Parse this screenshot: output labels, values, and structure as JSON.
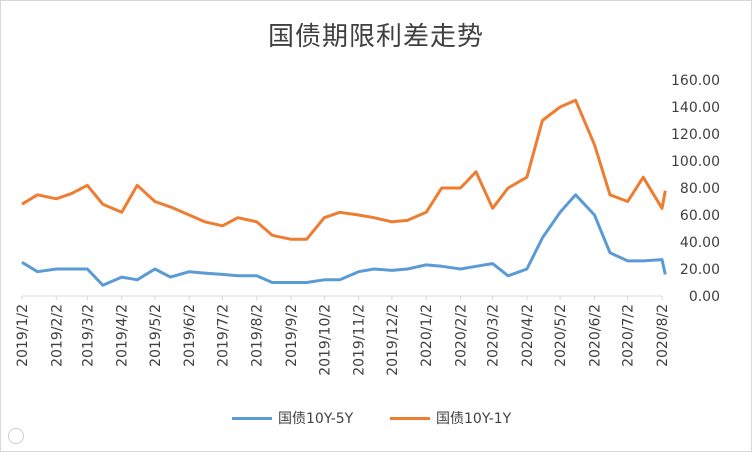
{
  "chart_data": {
    "type": "line",
    "title": "国债期限利差走势",
    "xlabel": "",
    "ylabel": "",
    "ylim": [
      0,
      160
    ],
    "y_ticks": [
      "0.00",
      "20.00",
      "40.00",
      "60.00",
      "80.00",
      "100.00",
      "120.00",
      "140.00",
      "160.00"
    ],
    "x_ticks": [
      "2019/1/2",
      "2019/2/2",
      "2019/3/2",
      "2019/4/2",
      "2019/5/2",
      "2019/6/2",
      "2019/7/2",
      "2019/8/2",
      "2019/9/2",
      "2019/10/2",
      "2019/11/2",
      "2019/12/2",
      "2020/1/2",
      "2020/2/2",
      "2020/3/2",
      "2020/4/2",
      "2020/5/2",
      "2020/6/2",
      "2020/7/2",
      "2020/8/2"
    ],
    "x": [
      "2019/1/2",
      "2019/1/16",
      "2019/2/2",
      "2019/2/16",
      "2019/3/2",
      "2019/3/16",
      "2019/4/2",
      "2019/4/16",
      "2019/5/2",
      "2019/5/16",
      "2019/6/2",
      "2019/6/16",
      "2019/7/2",
      "2019/7/16",
      "2019/8/2",
      "2019/8/16",
      "2019/9/2",
      "2019/9/16",
      "2019/10/2",
      "2019/10/16",
      "2019/11/2",
      "2019/11/16",
      "2019/12/2",
      "2019/12/16",
      "2020/1/2",
      "2020/1/16",
      "2020/2/2",
      "2020/2/16",
      "2020/3/2",
      "2020/3/16",
      "2020/4/2",
      "2020/4/16",
      "2020/5/2",
      "2020/5/16",
      "2020/6/2",
      "2020/6/16",
      "2020/7/2",
      "2020/7/16",
      "2020/8/2",
      "2020/8/5"
    ],
    "grid": false,
    "legend_position": "bottom",
    "series": [
      {
        "name": "国债10Y-5Y",
        "color": "#5b9bd5",
        "values": [
          25,
          18,
          20,
          20,
          20,
          8,
          14,
          12,
          20,
          14,
          18,
          17,
          16,
          15,
          15,
          10,
          10,
          10,
          12,
          12,
          18,
          20,
          19,
          20,
          23,
          22,
          20,
          22,
          24,
          15,
          20,
          43,
          62,
          75,
          60,
          32,
          26,
          26,
          27,
          16
        ]
      },
      {
        "name": "国债10Y-1Y",
        "color": "#ed7d31",
        "values": [
          68,
          75,
          72,
          76,
          82,
          68,
          62,
          82,
          70,
          66,
          60,
          55,
          52,
          58,
          55,
          45,
          42,
          42,
          58,
          62,
          60,
          58,
          55,
          56,
          62,
          80,
          80,
          92,
          65,
          80,
          88,
          130,
          140,
          145,
          112,
          75,
          70,
          88,
          65,
          78
        ]
      }
    ]
  }
}
